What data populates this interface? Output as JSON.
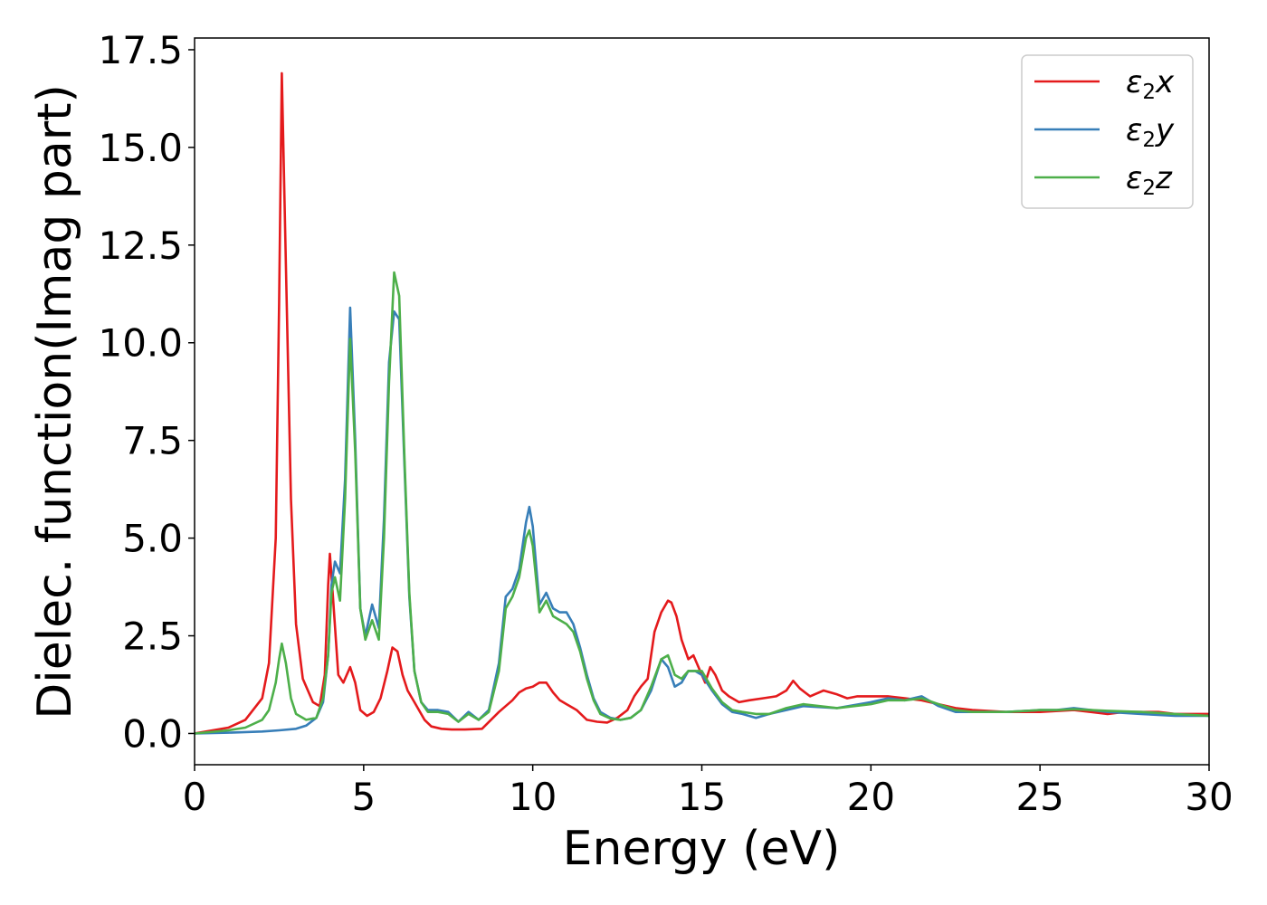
{
  "chart_data": {
    "type": "line",
    "xlabel": "Energy (eV)",
    "ylabel": "Dielec. function(Imag part)",
    "xlim": [
      0,
      30
    ],
    "ylim": [
      -0.8,
      17.8
    ],
    "xticks": [
      0,
      5,
      10,
      15,
      20,
      25,
      30
    ],
    "xtick_labels": [
      "0",
      "5",
      "10",
      "15",
      "20",
      "25",
      "30"
    ],
    "yticks": [
      0.0,
      2.5,
      5.0,
      7.5,
      10.0,
      12.5,
      15.0,
      17.5
    ],
    "ytick_labels": [
      "0.0",
      "2.5",
      "5.0",
      "7.5",
      "10.0",
      "12.5",
      "15.0",
      "17.5"
    ],
    "grid": false,
    "legend_position": "top-right",
    "series": [
      {
        "name": "ε₂x",
        "legend_base": "ε",
        "legend_sub": "2",
        "legend_var": "x",
        "color": "#e41a1c",
        "x": [
          0,
          1,
          1.5,
          2,
          2.2,
          2.4,
          2.5,
          2.58,
          2.7,
          2.85,
          3,
          3.2,
          3.5,
          3.7,
          3.85,
          3.95,
          4,
          4.1,
          4.25,
          4.4,
          4.6,
          4.75,
          4.9,
          5.1,
          5.3,
          5.5,
          5.7,
          5.85,
          6,
          6.15,
          6.3,
          6.5,
          6.8,
          7,
          7.3,
          7.6,
          8,
          8.5,
          9,
          9.2,
          9.4,
          9.6,
          9.8,
          10,
          10.2,
          10.4,
          10.6,
          10.8,
          11,
          11.3,
          11.6,
          11.9,
          12.2,
          12.5,
          12.8,
          13,
          13.2,
          13.4,
          13.6,
          13.8,
          14,
          14.1,
          14.25,
          14.4,
          14.6,
          14.75,
          14.9,
          15.1,
          15.25,
          15.4,
          15.6,
          15.8,
          16.1,
          16.4,
          16.8,
          17.2,
          17.5,
          17.7,
          17.9,
          18.2,
          18.6,
          19,
          19.3,
          19.6,
          20,
          20.5,
          21,
          21.5,
          22,
          22.5,
          23,
          24,
          25,
          26,
          26.5,
          27,
          27.5,
          28,
          28.5,
          29,
          30
        ],
        "values": [
          0,
          0.15,
          0.35,
          0.9,
          1.8,
          5,
          11,
          16.9,
          12,
          6,
          2.8,
          1.4,
          0.8,
          0.7,
          1.5,
          3.8,
          4.6,
          3.4,
          1.5,
          1.3,
          1.7,
          1.3,
          0.6,
          0.45,
          0.55,
          0.9,
          1.6,
          2.2,
          2.1,
          1.5,
          1.1,
          0.8,
          0.35,
          0.18,
          0.12,
          0.1,
          0.1,
          0.12,
          0.55,
          0.7,
          0.85,
          1.05,
          1.15,
          1.2,
          1.3,
          1.3,
          1.05,
          0.85,
          0.75,
          0.6,
          0.35,
          0.3,
          0.28,
          0.4,
          0.6,
          0.95,
          1.2,
          1.4,
          2.6,
          3.1,
          3.4,
          3.35,
          3,
          2.4,
          1.9,
          2,
          1.7,
          1.3,
          1.7,
          1.5,
          1.1,
          0.95,
          0.8,
          0.85,
          0.9,
          0.95,
          1.1,
          1.35,
          1.15,
          0.95,
          1.1,
          1,
          0.9,
          0.95,
          0.95,
          0.95,
          0.9,
          0.85,
          0.75,
          0.65,
          0.6,
          0.55,
          0.55,
          0.6,
          0.55,
          0.5,
          0.55,
          0.55,
          0.55,
          0.5,
          0.5
        ]
      },
      {
        "name": "ε₂y",
        "legend_base": "ε",
        "legend_sub": "2",
        "legend_var": "y",
        "color": "#377eb8",
        "x": [
          0,
          1,
          2,
          2.5,
          3,
          3.3,
          3.6,
          3.8,
          3.95,
          4.05,
          4.15,
          4.3,
          4.45,
          4.6,
          4.75,
          4.9,
          5.05,
          5.25,
          5.45,
          5.6,
          5.75,
          5.9,
          6.05,
          6.2,
          6.35,
          6.5,
          6.7,
          6.9,
          7.2,
          7.5,
          7.8,
          8.1,
          8.4,
          8.7,
          9,
          9.2,
          9.4,
          9.6,
          9.8,
          9.9,
          10,
          10.2,
          10.4,
          10.6,
          10.8,
          11,
          11.2,
          11.4,
          11.6,
          11.8,
          12,
          12.3,
          12.6,
          12.9,
          13.2,
          13.5,
          13.8,
          14,
          14.2,
          14.4,
          14.6,
          14.8,
          15,
          15.3,
          15.6,
          15.9,
          16.2,
          16.6,
          17,
          17.5,
          18,
          19,
          20,
          20.5,
          21,
          21.5,
          22,
          22.5,
          23,
          24,
          25,
          25.5,
          26,
          26.5,
          27,
          28,
          29,
          30
        ],
        "values": [
          0,
          0.02,
          0.05,
          0.08,
          0.12,
          0.2,
          0.4,
          0.8,
          2,
          3.8,
          4.4,
          4.1,
          6.5,
          10.9,
          7.5,
          3.2,
          2.5,
          3.3,
          2.7,
          5.5,
          9.5,
          10.8,
          10.6,
          7,
          3.5,
          1.6,
          0.8,
          0.6,
          0.6,
          0.55,
          0.3,
          0.55,
          0.35,
          0.6,
          1.8,
          3.5,
          3.7,
          4.2,
          5.4,
          5.8,
          5.3,
          3.3,
          3.6,
          3.2,
          3.1,
          3.1,
          2.8,
          2.2,
          1.5,
          0.9,
          0.55,
          0.4,
          0.35,
          0.4,
          0.6,
          1.1,
          1.9,
          1.7,
          1.2,
          1.3,
          1.6,
          1.6,
          1.5,
          1.1,
          0.75,
          0.55,
          0.5,
          0.4,
          0.5,
          0.6,
          0.7,
          0.65,
          0.8,
          0.9,
          0.85,
          0.95,
          0.7,
          0.55,
          0.55,
          0.55,
          0.6,
          0.6,
          0.65,
          0.6,
          0.55,
          0.5,
          0.45,
          0.45
        ]
      },
      {
        "name": "ε₂z",
        "legend_base": "ε",
        "legend_sub": "2",
        "legend_var": "z",
        "color": "#4daf4a",
        "x": [
          0,
          1,
          1.5,
          2,
          2.2,
          2.4,
          2.5,
          2.58,
          2.7,
          2.85,
          3,
          3.3,
          3.6,
          3.8,
          3.95,
          4.05,
          4.15,
          4.3,
          4.45,
          4.6,
          4.75,
          4.9,
          5.05,
          5.25,
          5.45,
          5.6,
          5.75,
          5.9,
          6.05,
          6.2,
          6.35,
          6.5,
          6.7,
          6.9,
          7.2,
          7.5,
          7.8,
          8.1,
          8.4,
          8.7,
          9,
          9.2,
          9.4,
          9.6,
          9.8,
          9.9,
          10,
          10.2,
          10.4,
          10.6,
          10.8,
          11,
          11.2,
          11.4,
          11.6,
          11.8,
          12,
          12.3,
          12.6,
          12.9,
          13.2,
          13.5,
          13.8,
          14,
          14.2,
          14.4,
          14.6,
          14.8,
          15,
          15.3,
          15.6,
          15.9,
          16.2,
          16.6,
          17,
          17.5,
          18,
          19,
          20,
          20.5,
          21,
          21.5,
          22,
          22.5,
          23,
          24,
          25,
          25.5,
          26,
          26.5,
          27,
          28,
          29,
          30
        ],
        "values": [
          0,
          0.08,
          0.15,
          0.35,
          0.6,
          1.3,
          1.9,
          2.3,
          1.8,
          0.9,
          0.5,
          0.35,
          0.4,
          0.9,
          2,
          3.6,
          4,
          3.4,
          6,
          10.1,
          7.2,
          3.2,
          2.4,
          2.9,
          2.4,
          5,
          9,
          11.8,
          11.2,
          7.2,
          3.6,
          1.6,
          0.8,
          0.55,
          0.55,
          0.5,
          0.3,
          0.5,
          0.35,
          0.55,
          1.6,
          3.2,
          3.5,
          4,
          5,
          5.2,
          4.8,
          3.1,
          3.4,
          3,
          2.9,
          2.8,
          2.6,
          2.1,
          1.4,
          0.85,
          0.5,
          0.38,
          0.35,
          0.4,
          0.6,
          1.2,
          1.9,
          2,
          1.5,
          1.4,
          1.6,
          1.6,
          1.6,
          1.15,
          0.8,
          0.6,
          0.55,
          0.5,
          0.5,
          0.65,
          0.75,
          0.65,
          0.75,
          0.85,
          0.85,
          0.9,
          0.75,
          0.6,
          0.55,
          0.55,
          0.6,
          0.6,
          0.62,
          0.6,
          0.58,
          0.55,
          0.5,
          0.45
        ]
      }
    ]
  }
}
